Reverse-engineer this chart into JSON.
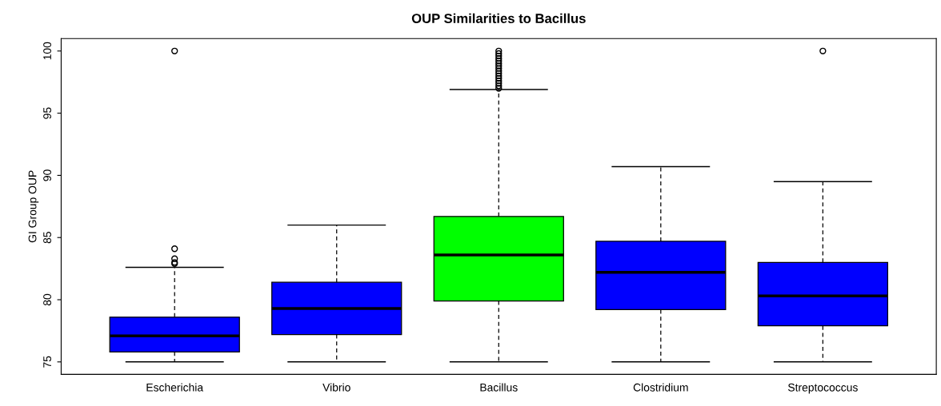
{
  "chart_data": {
    "type": "box",
    "title": "OUP Similarities to Bacillus",
    "ylabel": "GI Group OUP",
    "categories": [
      "Escherichia",
      "Vibrio",
      "Bacillus",
      "Clostridium",
      "Streptococcus"
    ],
    "colors": [
      "#0000ff",
      "#0000ff",
      "#00ff00",
      "#0000ff",
      "#0000ff"
    ],
    "boxes": [
      {
        "low": 75,
        "q1": 75.8,
        "median": 77.1,
        "q3": 78.6,
        "high": 82.6,
        "outliers": [
          82.9,
          83.0,
          83.3,
          84.1,
          100
        ]
      },
      {
        "low": 75,
        "q1": 77.2,
        "median": 79.3,
        "q3": 81.4,
        "high": 86.0
      },
      {
        "low": 75,
        "q1": 79.9,
        "median": 83.6,
        "q3": 86.7,
        "high": 96.9,
        "outliers": [
          97.0,
          97.2,
          97.4,
          97.6,
          97.8,
          98.0,
          98.2,
          98.4,
          98.6,
          98.8,
          99.0,
          99.2,
          99.4,
          99.6,
          99.8,
          100
        ]
      },
      {
        "low": 75,
        "q1": 79.2,
        "median": 82.2,
        "q3": 84.7,
        "high": 90.7
      },
      {
        "low": 75,
        "q1": 77.9,
        "median": 80.3,
        "q3": 83.0,
        "high": 89.5,
        "outliers": [
          100
        ]
      }
    ],
    "ylim": [
      74,
      101
    ],
    "yticks": [
      75,
      80,
      85,
      90,
      95,
      100
    ],
    "grid": false,
    "line_style": "dashed"
  }
}
